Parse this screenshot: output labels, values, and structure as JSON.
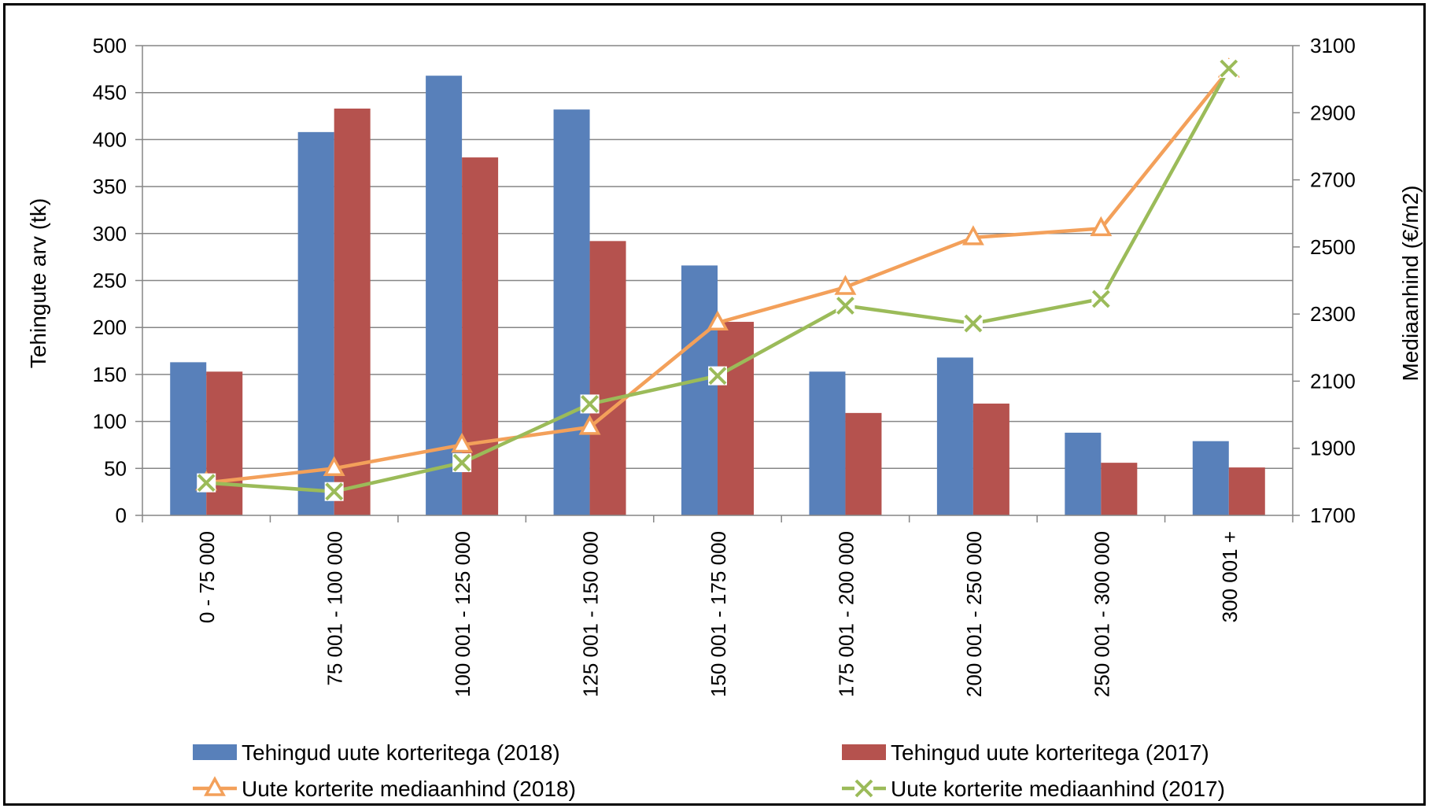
{
  "chart_data": {
    "type": "bar",
    "title": "",
    "categories": [
      "0 - 75 000",
      "75 001 - 100 000",
      "100 001 - 125 000",
      "125 001 - 150 000",
      "150 001 - 175 000",
      "175 001 - 200 000",
      "200 001 - 250 000",
      "250 001 - 300 000",
      "300 001 +"
    ],
    "ylabel": "Tehingute arv (tk)",
    "y2label": "Mediaanhind (€/m2)",
    "ylim": [
      0,
      500
    ],
    "y2lim": [
      1700,
      3100
    ],
    "yticks": [
      0,
      50,
      100,
      150,
      200,
      250,
      300,
      350,
      400,
      450,
      500
    ],
    "y2ticks": [
      1700,
      1900,
      2100,
      2300,
      2500,
      2700,
      2900,
      3100
    ],
    "grid": true,
    "legend_position": "bottom",
    "series": [
      {
        "name": "Tehingud uute korteritega (2018)",
        "type": "bar",
        "axis": "left",
        "color": "#5880BA",
        "values": [
          163,
          408,
          468,
          432,
          266,
          153,
          168,
          88,
          79
        ]
      },
      {
        "name": "Tehingud uute korteritega (2017)",
        "type": "bar",
        "axis": "left",
        "color": "#B5524E",
        "values": [
          153,
          433,
          381,
          292,
          206,
          109,
          119,
          56,
          51
        ]
      },
      {
        "name": "Uute korterite mediaanhind (2018)",
        "type": "line",
        "axis": "right",
        "marker": "triangle",
        "color": "#F3A05A",
        "values": [
          1797,
          1840,
          1910,
          1963,
          2274,
          2380,
          2528,
          2555,
          3028
        ]
      },
      {
        "name": "Uute korterite mediaanhind (2017)",
        "type": "line",
        "axis": "right",
        "marker": "x",
        "color": "#9BBB59",
        "values": [
          1797,
          1771,
          1857,
          2032,
          2116,
          2325,
          2272,
          2345,
          3032
        ]
      }
    ]
  }
}
